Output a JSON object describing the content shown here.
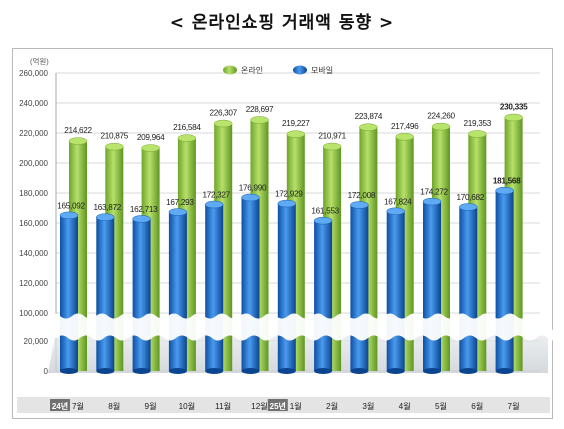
{
  "title": "< 온라인쇼핑 거래액 동향 >",
  "chart_data": {
    "type": "bar",
    "unit_label": "(억원)",
    "categories": [
      "7월",
      "8월",
      "9월",
      "10월",
      "11월",
      "12월",
      "1월",
      "2월",
      "3월",
      "4월",
      "5월",
      "6월",
      "7월"
    ],
    "year_tags": [
      {
        "index": 0,
        "label": "24년"
      },
      {
        "index": 6,
        "label": "25년"
      }
    ],
    "series": [
      {
        "name": "온라인",
        "color": "#8dc63f",
        "values": [
          214622,
          210875,
          209964,
          216584,
          226307,
          228697,
          219227,
          210971,
          223874,
          217496,
          224260,
          219353,
          230335
        ],
        "labels": [
          "214,622",
          "210,875",
          "209,964",
          "216,584",
          "226,307",
          "228,697",
          "219,227",
          "210,971",
          "223,874",
          "217,496",
          "224,260",
          "219,353",
          "230,335"
        ]
      },
      {
        "name": "모바일",
        "color": "#1f6fc9",
        "values": [
          165092,
          163872,
          162713,
          167293,
          172327,
          176990,
          172929,
          161553,
          172008,
          167824,
          174272,
          170682,
          181568
        ],
        "labels": [
          "165,092",
          "163,872",
          "162,713",
          "167,293",
          "172,327",
          "176,990",
          "172,929",
          "161,553",
          "172,008",
          "167,824",
          "174,272",
          "170,682",
          "181,568"
        ]
      }
    ],
    "y_ticks": [
      "260,000",
      "240,000",
      "220,000",
      "200,000",
      "180,000",
      "160,000",
      "140,000",
      "120,000",
      "100,000",
      "20,000",
      "0"
    ],
    "ylim": [
      0,
      260000
    ],
    "axis_break": [
      20000,
      100000
    ],
    "legend_position": "top-center",
    "grid": true
  }
}
